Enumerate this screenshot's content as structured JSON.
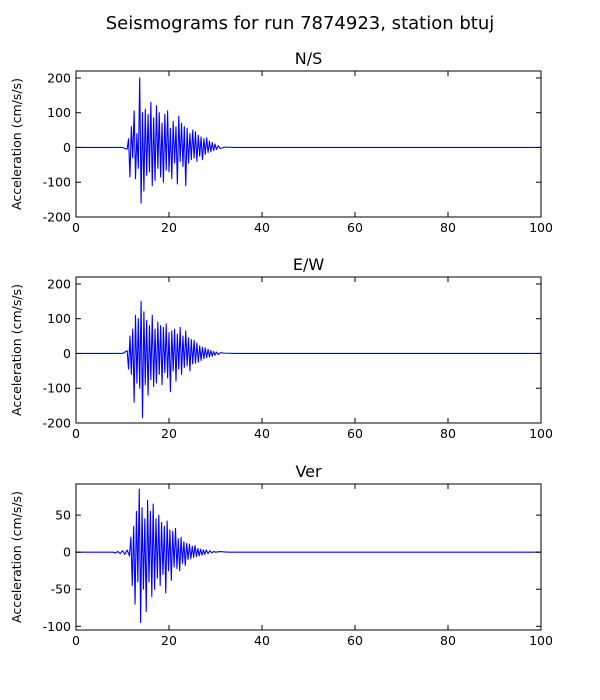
{
  "figure": {
    "title": "Seismograms for run 7874923, station btuj"
  },
  "chart_data": [
    {
      "type": "line",
      "title": "N/S",
      "xlabel": "",
      "ylabel": "Acceleration (cm/s/s)",
      "xlim": [
        0,
        100
      ],
      "ylim": [
        -200,
        220
      ],
      "xticks": [
        0,
        20,
        40,
        60,
        80,
        100
      ],
      "yticks": [
        -200,
        -100,
        0,
        100,
        200
      ],
      "color": "#0000ff",
      "grid": false,
      "x": [
        0,
        10,
        11,
        11.3,
        11.6,
        11.9,
        12.2,
        12.5,
        12.8,
        13.1,
        13.4,
        13.7,
        14.0,
        14.3,
        14.6,
        14.9,
        15.2,
        15.5,
        15.8,
        16.1,
        16.4,
        16.7,
        17.0,
        17.3,
        17.6,
        17.9,
        18.2,
        18.5,
        18.8,
        19.1,
        19.4,
        19.7,
        20.0,
        20.3,
        20.6,
        20.9,
        21.2,
        21.5,
        21.8,
        22.1,
        22.4,
        22.7,
        23.0,
        23.3,
        23.6,
        23.9,
        24.2,
        24.5,
        24.8,
        25.1,
        25.4,
        25.7,
        26.0,
        26.3,
        26.6,
        26.9,
        27.2,
        27.5,
        27.8,
        28.1,
        28.4,
        28.7,
        29.0,
        29.3,
        29.6,
        29.9,
        30.2,
        30.6,
        31,
        32,
        34,
        100
      ],
      "y": [
        0,
        0,
        -5,
        25,
        -85,
        60,
        -30,
        105,
        -90,
        40,
        -60,
        200,
        -160,
        100,
        -125,
        110,
        -80,
        95,
        -70,
        130,
        -110,
        85,
        -95,
        120,
        -60,
        100,
        -85,
        70,
        -100,
        95,
        -65,
        105,
        -70,
        55,
        -90,
        75,
        -45,
        60,
        -105,
        90,
        -40,
        70,
        -55,
        60,
        -110,
        55,
        -45,
        40,
        -35,
        50,
        -30,
        45,
        -40,
        35,
        -25,
        30,
        -35,
        25,
        -20,
        28,
        -15,
        18,
        -12,
        14,
        -9,
        10,
        -6,
        5,
        -3,
        1,
        0,
        0
      ]
    },
    {
      "type": "line",
      "title": "E/W",
      "xlabel": "",
      "ylabel": "Acceleration (cm/s/s)",
      "xlim": [
        0,
        100
      ],
      "ylim": [
        -200,
        220
      ],
      "xticks": [
        0,
        20,
        40,
        60,
        80,
        100
      ],
      "yticks": [
        -200,
        -100,
        0,
        100,
        200
      ],
      "color": "#0000ff",
      "grid": false,
      "x": [
        0,
        10,
        11,
        11.3,
        11.6,
        11.9,
        12.2,
        12.5,
        12.8,
        13.1,
        13.4,
        13.7,
        14.0,
        14.3,
        14.6,
        14.9,
        15.2,
        15.5,
        15.8,
        16.1,
        16.4,
        16.7,
        17.0,
        17.3,
        17.6,
        17.9,
        18.2,
        18.5,
        18.8,
        19.1,
        19.4,
        19.7,
        20.0,
        20.3,
        20.6,
        20.9,
        21.2,
        21.5,
        21.8,
        22.1,
        22.4,
        22.7,
        23.0,
        23.3,
        23.6,
        23.9,
        24.2,
        24.5,
        24.8,
        25.1,
        25.4,
        25.7,
        26.0,
        26.3,
        26.6,
        26.9,
        27.2,
        27.5,
        27.8,
        28.1,
        28.4,
        28.7,
        29.0,
        29.3,
        29.6,
        29.9,
        30.2,
        30.6,
        31,
        32,
        34,
        100
      ],
      "y": [
        0,
        0,
        8,
        -45,
        50,
        -60,
        70,
        -140,
        110,
        -85,
        100,
        -100,
        150,
        -185,
        120,
        -90,
        95,
        -120,
        80,
        -75,
        110,
        -95,
        70,
        -85,
        90,
        -60,
        80,
        -90,
        75,
        -55,
        85,
        -70,
        60,
        -110,
        65,
        -50,
        70,
        -80,
        55,
        -45,
        75,
        -60,
        50,
        -40,
        65,
        -35,
        45,
        -50,
        40,
        -30,
        38,
        -28,
        30,
        -25,
        22,
        -20,
        18,
        -15,
        16,
        -12,
        12,
        -10,
        9,
        -8,
        6,
        -5,
        4,
        -3,
        2,
        1,
        0,
        0
      ]
    },
    {
      "type": "line",
      "title": "Ver",
      "xlabel": "",
      "ylabel": "Acceleration (cm/s/s)",
      "xlim": [
        0,
        100
      ],
      "ylim": [
        -105,
        92
      ],
      "xticks": [
        0,
        20,
        40,
        60,
        80,
        100
      ],
      "yticks": [
        -100,
        -50,
        0,
        50
      ],
      "color": "#0000ff",
      "grid": false,
      "x": [
        0,
        8,
        8.5,
        9,
        9.5,
        10,
        10.5,
        11,
        11.5,
        11.8,
        12.1,
        12.4,
        12.7,
        13.0,
        13.3,
        13.6,
        13.9,
        14.2,
        14.5,
        14.8,
        15.1,
        15.4,
        15.7,
        16.0,
        16.3,
        16.6,
        16.9,
        17.2,
        17.5,
        17.8,
        18.1,
        18.4,
        18.7,
        19.0,
        19.3,
        19.6,
        19.9,
        20.2,
        20.5,
        20.8,
        21.1,
        21.4,
        21.7,
        22.0,
        22.3,
        22.6,
        22.9,
        23.2,
        23.5,
        23.8,
        24.1,
        24.4,
        24.7,
        25.0,
        25.3,
        25.6,
        25.9,
        26.2,
        26.5,
        26.8,
        27.1,
        27.4,
        27.7,
        28.0,
        28.4,
        28.8,
        29.2,
        29.6,
        30,
        31,
        32,
        33,
        35,
        100
      ],
      "y": [
        0,
        0,
        -1,
        1,
        -2,
        2,
        -3,
        3,
        -5,
        20,
        -45,
        35,
        -70,
        55,
        -40,
        85,
        -95,
        60,
        -50,
        45,
        -80,
        70,
        -40,
        55,
        -60,
        65,
        -50,
        45,
        -35,
        50,
        -45,
        40,
        -30,
        35,
        -55,
        42,
        -25,
        30,
        -38,
        28,
        -20,
        32,
        -22,
        18,
        -25,
        20,
        -15,
        14,
        -18,
        12,
        -10,
        11,
        -9,
        8,
        -7,
        9,
        -6,
        5,
        -5,
        4,
        -4,
        3,
        -3,
        3,
        -2,
        2,
        -1,
        1,
        0,
        0.8,
        0.3,
        0,
        0,
        0
      ]
    }
  ]
}
